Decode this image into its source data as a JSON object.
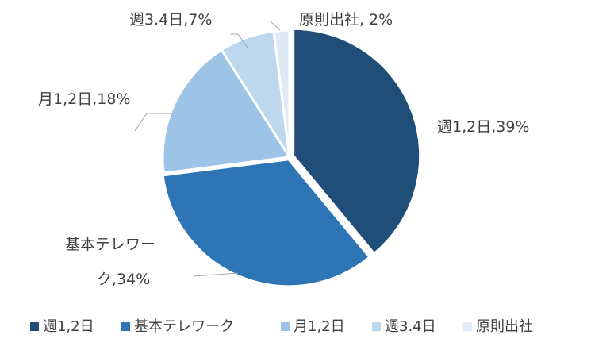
{
  "chart_data": {
    "type": "pie",
    "title": "",
    "categories": [
      "週1,2日",
      "基本テレワーク",
      "月1,2日",
      "週3.4日",
      "原則出社"
    ],
    "values": [
      39,
      34,
      18,
      7,
      2
    ],
    "unit": "%",
    "colors": [
      "#1f4e79",
      "#2e75b6",
      "#9dc3e6",
      "#bdd7ee",
      "#deebf7"
    ],
    "data_labels": [
      "週1,2日,39%",
      "基本テレワーク,34%",
      "月1,2日,18%",
      "週3.4日,7%",
      "原則出社, 2%"
    ],
    "legend_position": "bottom"
  }
}
